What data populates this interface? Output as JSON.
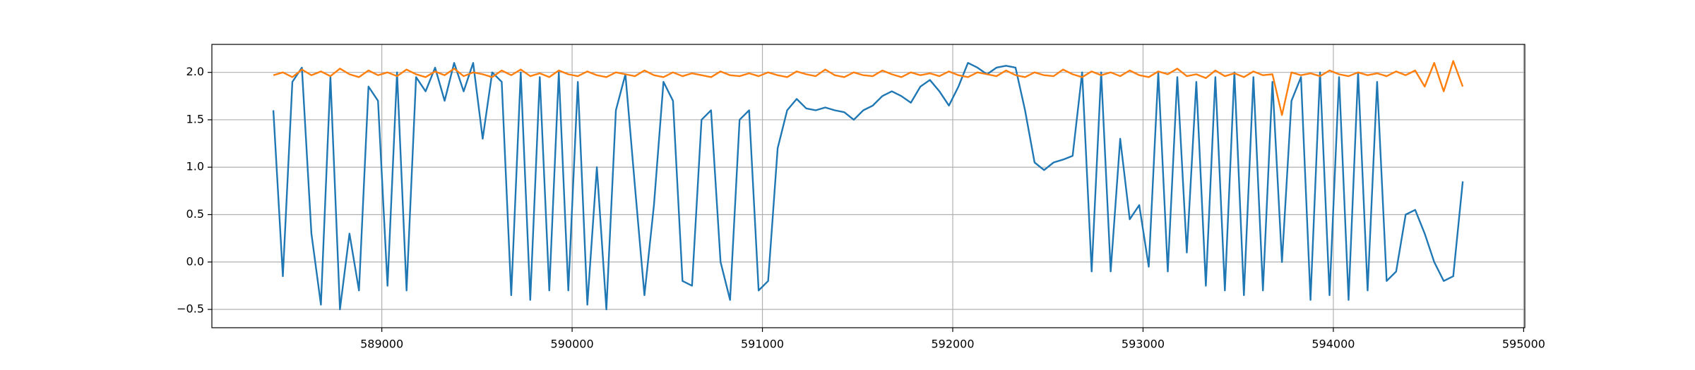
{
  "chart_data": {
    "type": "line",
    "x": [
      588430,
      588480,
      588530,
      588580,
      588630,
      588680,
      588730,
      588780,
      588830,
      588880,
      588930,
      588980,
      589030,
      589080,
      589130,
      589180,
      589230,
      589280,
      589330,
      589380,
      589430,
      589480,
      589530,
      589580,
      589630,
      589680,
      589730,
      589780,
      589830,
      589880,
      589930,
      589980,
      590030,
      590080,
      590130,
      590180,
      590230,
      590280,
      590330,
      590380,
      590430,
      590480,
      590530,
      590580,
      590630,
      590680,
      590730,
      590780,
      590830,
      590880,
      590930,
      590980,
      591030,
      591080,
      591130,
      591180,
      591230,
      591280,
      591330,
      591380,
      591430,
      591480,
      591530,
      591580,
      591630,
      591680,
      591730,
      591780,
      591830,
      591880,
      591930,
      591980,
      592030,
      592080,
      592130,
      592180,
      592230,
      592280,
      592330,
      592380,
      592430,
      592480,
      592530,
      592580,
      592630,
      592680,
      592730,
      592780,
      592830,
      592880,
      592930,
      592980,
      593030,
      593080,
      593130,
      593180,
      593230,
      593280,
      593330,
      593380,
      593430,
      593480,
      593530,
      593580,
      593630,
      593680,
      593730,
      593780,
      593830,
      593880,
      593930,
      593980,
      594030,
      594080,
      594130,
      594180,
      594230,
      594280,
      594330,
      594380,
      594430,
      594480,
      594530,
      594580,
      594630,
      594680
    ],
    "series": [
      {
        "color": "#1f77b4",
        "values": [
          1.6,
          -0.15,
          1.9,
          2.05,
          0.3,
          -0.45,
          1.95,
          -0.5,
          0.3,
          -0.3,
          1.85,
          1.7,
          -0.25,
          2.0,
          -0.3,
          1.95,
          1.8,
          2.05,
          1.7,
          2.1,
          1.8,
          2.1,
          1.3,
          2.0,
          1.9,
          -0.35,
          2.0,
          -0.4,
          1.95,
          -0.3,
          2.0,
          -0.3,
          1.9,
          -0.45,
          1.0,
          -0.5,
          1.6,
          1.98,
          0.8,
          -0.35,
          0.6,
          1.9,
          1.7,
          -0.2,
          -0.25,
          1.5,
          1.6,
          0.0,
          -0.4,
          1.5,
          1.6,
          -0.3,
          -0.2,
          1.2,
          1.6,
          1.72,
          1.62,
          1.6,
          1.63,
          1.6,
          1.58,
          1.5,
          1.6,
          1.65,
          1.75,
          1.8,
          1.75,
          1.68,
          1.85,
          1.92,
          1.8,
          1.65,
          1.85,
          2.1,
          2.05,
          1.98,
          2.05,
          2.07,
          2.05,
          1.6,
          1.05,
          0.97,
          1.05,
          1.08,
          1.12,
          2.0,
          -0.1,
          2.0,
          -0.1,
          1.3,
          0.45,
          0.6,
          -0.05,
          2.0,
          -0.1,
          1.95,
          0.1,
          1.9,
          -0.25,
          1.95,
          -0.3,
          2.0,
          -0.35,
          1.95,
          -0.3,
          1.9,
          0.0,
          1.7,
          1.95,
          -0.4,
          2.0,
          -0.35,
          1.95,
          -0.4,
          2.0,
          -0.3,
          1.9,
          -0.2,
          -0.1,
          0.5,
          0.55,
          0.3,
          0.0,
          -0.2,
          -0.15,
          0.85
        ]
      },
      {
        "color": "#ff7f0e",
        "values": [
          1.97,
          2.0,
          1.95,
          2.03,
          1.97,
          2.01,
          1.96,
          2.04,
          1.98,
          1.95,
          2.02,
          1.97,
          2.0,
          1.96,
          2.03,
          1.98,
          1.95,
          2.01,
          1.97,
          2.04,
          1.96,
          2.0,
          1.98,
          1.95,
          2.02,
          1.97,
          2.03,
          1.96,
          1.99,
          1.95,
          2.02,
          1.98,
          1.96,
          2.01,
          1.97,
          1.95,
          2.0,
          1.98,
          1.96,
          2.02,
          1.97,
          1.95,
          2.0,
          1.96,
          1.99,
          1.97,
          1.95,
          2.01,
          1.97,
          1.96,
          1.99,
          1.96,
          2.0,
          1.97,
          1.95,
          2.01,
          1.98,
          1.96,
          2.03,
          1.97,
          1.95,
          2.0,
          1.97,
          1.96,
          2.02,
          1.98,
          1.95,
          2.0,
          1.97,
          1.99,
          1.96,
          2.01,
          1.97,
          1.95,
          2.0,
          1.98,
          1.96,
          2.02,
          1.97,
          1.95,
          2.0,
          1.97,
          1.96,
          2.03,
          1.98,
          1.95,
          2.01,
          1.97,
          2.0,
          1.96,
          2.02,
          1.97,
          1.95,
          2.01,
          1.98,
          2.04,
          1.96,
          1.98,
          1.94,
          2.02,
          1.96,
          1.99,
          1.95,
          2.01,
          1.97,
          1.98,
          1.55,
          2.0,
          1.97,
          1.99,
          1.96,
          2.02,
          1.98,
          1.96,
          2.0,
          1.97,
          1.99,
          1.96,
          2.01,
          1.97,
          2.02,
          1.85,
          2.1,
          1.8,
          2.12,
          1.85
        ]
      }
    ],
    "xlim": [
      588107,
      595006
    ],
    "ylim": [
      -0.693,
      2.295
    ],
    "xticks": [
      589000,
      590000,
      591000,
      592000,
      593000,
      594000,
      595000
    ],
    "yticks": [
      {
        "value": -0.5,
        "label": "−0.5"
      },
      {
        "value": 0,
        "label": "0.0"
      },
      0.5,
      {
        "value": 1,
        "label": "1.0"
      },
      1.5,
      {
        "value": 2,
        "label": "2.0"
      }
    ],
    "grid": true
  }
}
